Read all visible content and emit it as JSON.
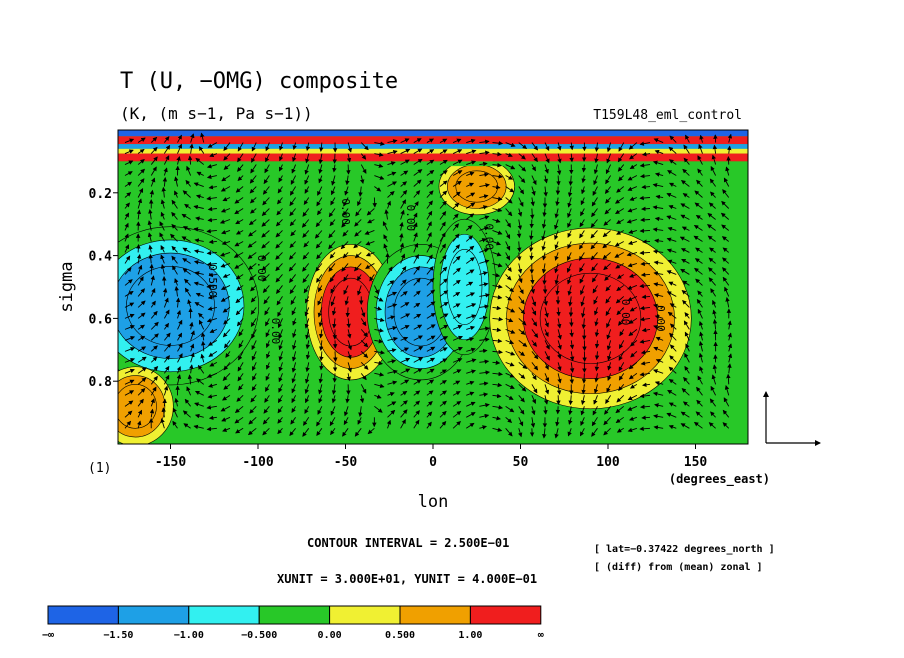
{
  "chart_data": {
    "type": "heatmap",
    "title": "T (U, −OMG) composite",
    "subtitle": "(K, (m s−1, Pa s−1))",
    "run_label": "T159L48_eml_control",
    "xlabel": "lon",
    "xlabel_unit": "(degrees_east)",
    "ylabel": "sigma",
    "xlim": [
      -180,
      180
    ],
    "ylim": [
      1.0,
      0.0
    ],
    "x_ticks": [
      "-150",
      "-100",
      "-50",
      "0",
      "50",
      "100",
      "150"
    ],
    "x_tick_values": [
      -150,
      -100,
      -50,
      0,
      50,
      100,
      150
    ],
    "y_ticks": [
      "0.2",
      "0.4",
      "0.6",
      "0.8"
    ],
    "y_tick_values": [
      0.2,
      0.4,
      0.6,
      0.8
    ],
    "page_number": "(1)",
    "contour_interval": "CONTOUR INTERVAL = 2.500E−01",
    "units_note": "XUNIT = 3.000E+01, YUNIT = 4.000E−01",
    "lat_note": "[ lat=−0.37422 degrees_north ]",
    "diff_note": "[ (diff) from (mean) zonal ]",
    "contour_labels": [
      "0.500",
      "0.00",
      "0.00",
      "0.00",
      "0.00",
      "0.00",
      "0.00",
      "0.00"
    ],
    "colorbar": {
      "colors": [
        "#1e64e6",
        "#1ea0e6",
        "#32f0f0",
        "#28c828",
        "#f0f032",
        "#f0a000",
        "#f01e1e"
      ],
      "labels": [
        "−∞",
        "−1.50",
        "−1.00",
        "−0.500",
        "0.00",
        "0.500",
        "1.00",
        "∞"
      ],
      "levels": [
        -1.5,
        -1.0,
        -0.5,
        0.0,
        0.5,
        1.0
      ]
    },
    "anomalies": [
      {
        "lon": -150,
        "sigma": 0.56,
        "value": -1.3,
        "extent_lon": 28,
        "extent_sigma": 0.14
      },
      {
        "lon": -47,
        "sigma": 0.58,
        "value": 1.3,
        "extent_lon": 14,
        "extent_sigma": 0.12
      },
      {
        "lon": -7,
        "sigma": 0.58,
        "value": -1.2,
        "extent_lon": 17,
        "extent_sigma": 0.12
      },
      {
        "lon": 18,
        "sigma": 0.5,
        "value": -0.7,
        "extent_lon": 10,
        "extent_sigma": 0.12
      },
      {
        "lon": 90,
        "sigma": 0.6,
        "value": 1.5,
        "extent_lon": 32,
        "extent_sigma": 0.16
      },
      {
        "lon": 25,
        "sigma": 0.18,
        "value": 0.6,
        "extent_lon": 12,
        "extent_sigma": 0.05
      },
      {
        "lon": -170,
        "sigma": 0.88,
        "value": 0.6,
        "extent_lon": 12,
        "extent_sigma": 0.07
      }
    ]
  }
}
